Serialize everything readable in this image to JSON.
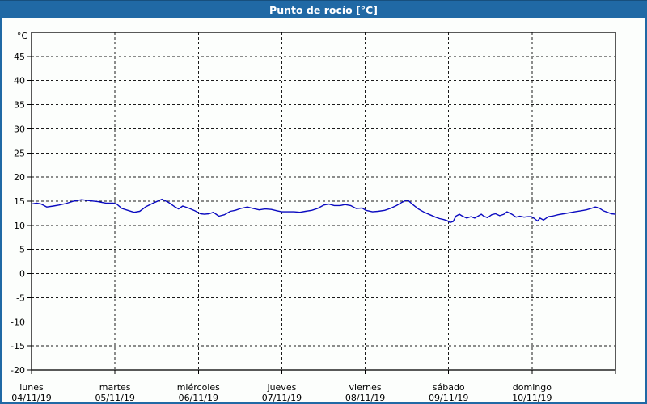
{
  "header": {
    "title": "Punto de rocío [°C]",
    "bg_color": "#2069a5",
    "text_color": "#ffffff"
  },
  "panel": {
    "border_color": "#2069a5",
    "background": "#fcfefc"
  },
  "chart_data": {
    "type": "line",
    "title": "Punto de rocío [°C]",
    "grid": "dashed",
    "legend": "none",
    "y_axis": {
      "unit": "°C",
      "min": -20,
      "max": 50,
      "tick_step": 5,
      "tick_labels": [
        "45",
        "40",
        "35",
        "30",
        "25",
        "20",
        "15",
        "10",
        "5",
        "0",
        "-5",
        "-10",
        "-15",
        "-20"
      ]
    },
    "x_axis": {
      "range_hours": [
        0,
        168
      ],
      "tick_step_hours": 24,
      "day_ticks": [
        {
          "hour": 0,
          "day": "lunes",
          "date": "04/11/19"
        },
        {
          "hour": 24,
          "day": "martes",
          "date": "05/11/19"
        },
        {
          "hour": 48,
          "day": "miércoles",
          "date": "06/11/19"
        },
        {
          "hour": 72,
          "day": "jueves",
          "date": "07/11/19"
        },
        {
          "hour": 96,
          "day": "viernes",
          "date": "08/11/19"
        },
        {
          "hour": 120,
          "day": "sábado",
          "date": "09/11/19"
        },
        {
          "hour": 144,
          "day": "domingo",
          "date": "10/11/19"
        }
      ]
    },
    "series": [
      {
        "name": "Punto de rocío",
        "color": "#0a0ac0",
        "points": [
          [
            0,
            14.4
          ],
          [
            1.5,
            14.6
          ],
          [
            2.8,
            14.4
          ],
          [
            4.4,
            13.8
          ],
          [
            6.3,
            14.0
          ],
          [
            7.9,
            14.2
          ],
          [
            9.8,
            14.5
          ],
          [
            12.1,
            15.0
          ],
          [
            14.4,
            15.3
          ],
          [
            16.7,
            15.1
          ],
          [
            19.1,
            14.9
          ],
          [
            21.4,
            14.6
          ],
          [
            23.5,
            14.6
          ],
          [
            24.5,
            14.4
          ],
          [
            26,
            13.5
          ],
          [
            27.7,
            13.1
          ],
          [
            29.5,
            12.7
          ],
          [
            31.1,
            12.9
          ],
          [
            33,
            13.9
          ],
          [
            35.3,
            14.7
          ],
          [
            37.5,
            15.4
          ],
          [
            39.3,
            14.8
          ],
          [
            41.1,
            13.9
          ],
          [
            42.3,
            13.4
          ],
          [
            43.5,
            14.0
          ],
          [
            45.1,
            13.6
          ],
          [
            47,
            13.0
          ],
          [
            48.6,
            12.4
          ],
          [
            49.7,
            12.3
          ],
          [
            51.1,
            12.4
          ],
          [
            52.3,
            12.7
          ],
          [
            53.9,
            11.9
          ],
          [
            55.5,
            12.2
          ],
          [
            57.2,
            12.9
          ],
          [
            58.6,
            13.1
          ],
          [
            60.2,
            13.5
          ],
          [
            62.1,
            13.8
          ],
          [
            63.7,
            13.5
          ],
          [
            65.5,
            13.2
          ],
          [
            67.2,
            13.4
          ],
          [
            69,
            13.3
          ],
          [
            70.7,
            13.0
          ],
          [
            72,
            12.8
          ],
          [
            73.7,
            12.8
          ],
          [
            75.5,
            12.8
          ],
          [
            77.2,
            12.7
          ],
          [
            78.8,
            12.9
          ],
          [
            80.6,
            13.1
          ],
          [
            82.3,
            13.5
          ],
          [
            84.1,
            14.2
          ],
          [
            85.5,
            14.4
          ],
          [
            87.1,
            14.1
          ],
          [
            88.8,
            14.1
          ],
          [
            90.2,
            14.3
          ],
          [
            91.8,
            14.1
          ],
          [
            93.4,
            13.5
          ],
          [
            95.1,
            13.6
          ],
          [
            96.2,
            13.1
          ],
          [
            98.1,
            12.8
          ],
          [
            99.7,
            12.9
          ],
          [
            101.6,
            13.1
          ],
          [
            103.2,
            13.5
          ],
          [
            105,
            14.1
          ],
          [
            106.4,
            14.7
          ],
          [
            107.6,
            15.1
          ],
          [
            108.3,
            15.2
          ],
          [
            109.7,
            14.3
          ],
          [
            111.3,
            13.4
          ],
          [
            113,
            12.7
          ],
          [
            114.6,
            12.2
          ],
          [
            116.2,
            11.7
          ],
          [
            117.4,
            11.4
          ],
          [
            118.6,
            11.2
          ],
          [
            119.5,
            11.0
          ],
          [
            120.4,
            10.6
          ],
          [
            121.3,
            10.8
          ],
          [
            122.1,
            11.9
          ],
          [
            123.1,
            12.3
          ],
          [
            124,
            11.9
          ],
          [
            125.2,
            11.5
          ],
          [
            126.4,
            11.8
          ],
          [
            127.5,
            11.5
          ],
          [
            128.7,
            12.0
          ],
          [
            129.4,
            12.3
          ],
          [
            130.1,
            11.9
          ],
          [
            131.2,
            11.6
          ],
          [
            132.4,
            12.2
          ],
          [
            133.5,
            12.4
          ],
          [
            134.7,
            12.0
          ],
          [
            135.9,
            12.3
          ],
          [
            136.8,
            12.8
          ],
          [
            138.2,
            12.3
          ],
          [
            139.4,
            11.7
          ],
          [
            140.5,
            11.9
          ],
          [
            141.7,
            11.7
          ],
          [
            142.9,
            11.8
          ],
          [
            143.8,
            11.8
          ],
          [
            144.7,
            11.4
          ],
          [
            145.6,
            10.9
          ],
          [
            146.3,
            11.5
          ],
          [
            147.3,
            11.1
          ],
          [
            148.7,
            11.8
          ],
          [
            149.8,
            11.9
          ],
          [
            151.5,
            12.2
          ],
          [
            153.1,
            12.4
          ],
          [
            154.7,
            12.6
          ],
          [
            156.3,
            12.8
          ],
          [
            158,
            13.0
          ],
          [
            159.6,
            13.2
          ],
          [
            161,
            13.5
          ],
          [
            162.2,
            13.8
          ],
          [
            163.3,
            13.6
          ],
          [
            164.5,
            13.0
          ],
          [
            165.7,
            12.7
          ],
          [
            166.8,
            12.4
          ],
          [
            168,
            12.3
          ]
        ]
      }
    ]
  }
}
